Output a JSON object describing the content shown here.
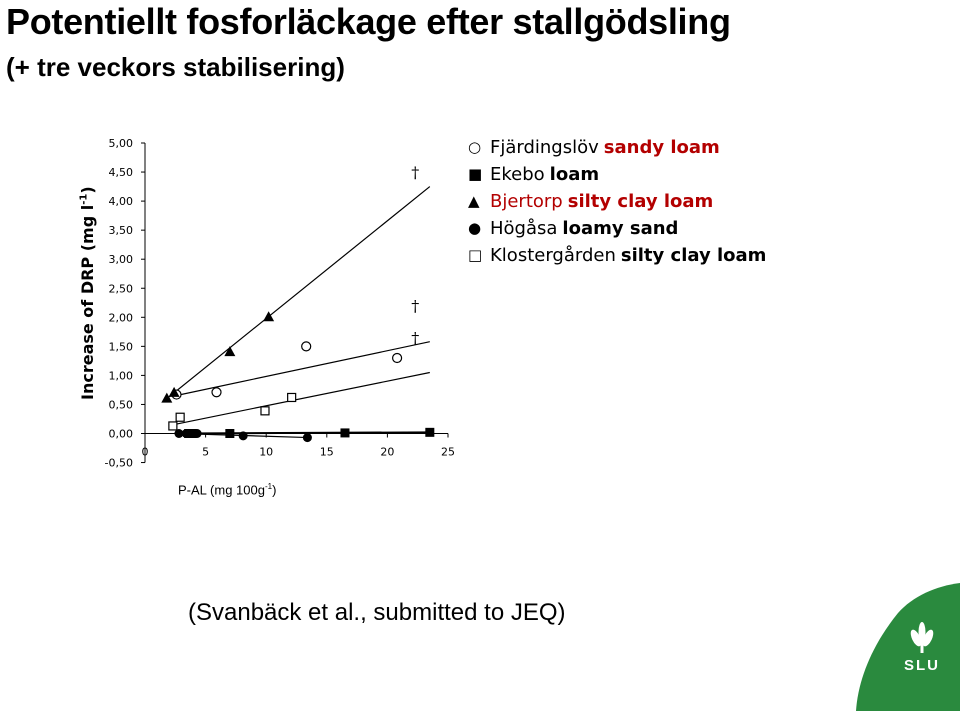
{
  "header": {
    "title": "Potentiellt fosforläckage efter stallgödsling",
    "subtitle": "(+ tre veckors stabilisering)"
  },
  "legend": [
    {
      "marker": "○",
      "site": "Fjärdingslöv",
      "soil": "sandy loam"
    },
    {
      "marker": "■",
      "site": "Ekebo",
      "soil": "loam"
    },
    {
      "marker": "▲",
      "site": "Bjertorp",
      "soil": "silty clay loam"
    },
    {
      "marker": "●",
      "site": "Högåsa",
      "soil": "loamy sand"
    },
    {
      "marker": "□",
      "site": "Klostergården",
      "soil": "silty clay loam"
    }
  ],
  "citation": "(Svanbäck et al., submitted to JEQ)",
  "logo": {
    "text": "SLU",
    "color": "#2a8a3e"
  },
  "chart_data": {
    "type": "scatter",
    "ylabel_main": "Increase  of DRP (mg l",
    "ylabel_sup": "-1",
    "ylabel_end": ")",
    "xlabel_main": "P-AL (mg 100g",
    "xlabel_sup": "-1",
    "xlabel_end": ")",
    "xlim": [
      0,
      25
    ],
    "ylim": [
      -0.5,
      5.0
    ],
    "x_ticks": [
      0,
      5,
      10,
      15,
      20,
      25
    ],
    "x_tick_labels": [
      "0",
      "5",
      "10",
      "15",
      "20",
      "25"
    ],
    "y_ticks": [
      -0.5,
      0,
      0.5,
      1.0,
      1.5,
      2.0,
      2.5,
      3.0,
      3.5,
      4.0,
      4.5,
      5.0
    ],
    "y_tick_labels": [
      "-0,50",
      "0,00",
      "0,50",
      "1,00",
      "1,50",
      "2,00",
      "2,50",
      "3,00",
      "3,50",
      "4,00",
      "4,50",
      "5,00"
    ],
    "series": [
      {
        "name": "Fjärdingslöv",
        "marker": "circle-open",
        "points": [
          [
            2.6,
            0.67
          ],
          [
            5.9,
            0.71
          ],
          [
            13.3,
            1.5
          ],
          [
            20.8,
            1.3
          ]
        ],
        "fit": [
          [
            2.5,
            0.65
          ],
          [
            23.5,
            1.58
          ]
        ]
      },
      {
        "name": "Ekebo",
        "marker": "square-filled",
        "points": [
          [
            3.6,
            0.0
          ],
          [
            3.9,
            0.0
          ],
          [
            7.0,
            0.0
          ],
          [
            16.5,
            0.01
          ],
          [
            23.5,
            0.02
          ]
        ],
        "fit": [
          [
            3.0,
            0.0
          ],
          [
            23.5,
            0.02
          ]
        ]
      },
      {
        "name": "Bjertorp",
        "marker": "triangle-filled",
        "points": [
          [
            1.8,
            0.6
          ],
          [
            2.4,
            0.7
          ],
          [
            7.0,
            1.4
          ],
          [
            10.2,
            2.0
          ]
        ],
        "fit": [
          [
            1.8,
            0.6
          ],
          [
            23.5,
            4.25
          ]
        ]
      },
      {
        "name": "Högåsa",
        "marker": "circle-filled",
        "points": [
          [
            2.8,
            0.0
          ],
          [
            3.4,
            0.0
          ],
          [
            4.3,
            0.0
          ],
          [
            8.1,
            -0.04
          ],
          [
            13.4,
            -0.07
          ]
        ],
        "fit": [
          [
            2.8,
            0.0
          ],
          [
            13.5,
            -0.07
          ]
        ]
      },
      {
        "name": "Klostergården",
        "marker": "square-open",
        "points": [
          [
            2.3,
            0.13
          ],
          [
            2.9,
            0.28
          ],
          [
            9.9,
            0.39
          ],
          [
            12.1,
            0.62
          ]
        ],
        "fit": [
          [
            2.3,
            0.15
          ],
          [
            23.5,
            1.05
          ]
        ]
      }
    ],
    "annotations": [
      {
        "text": "†",
        "x": 22.3,
        "y": 4.5
      },
      {
        "text": "†",
        "x": 22.3,
        "y": 2.2
      },
      {
        "text": "†",
        "x": 22.3,
        "y": 1.65
      }
    ]
  }
}
